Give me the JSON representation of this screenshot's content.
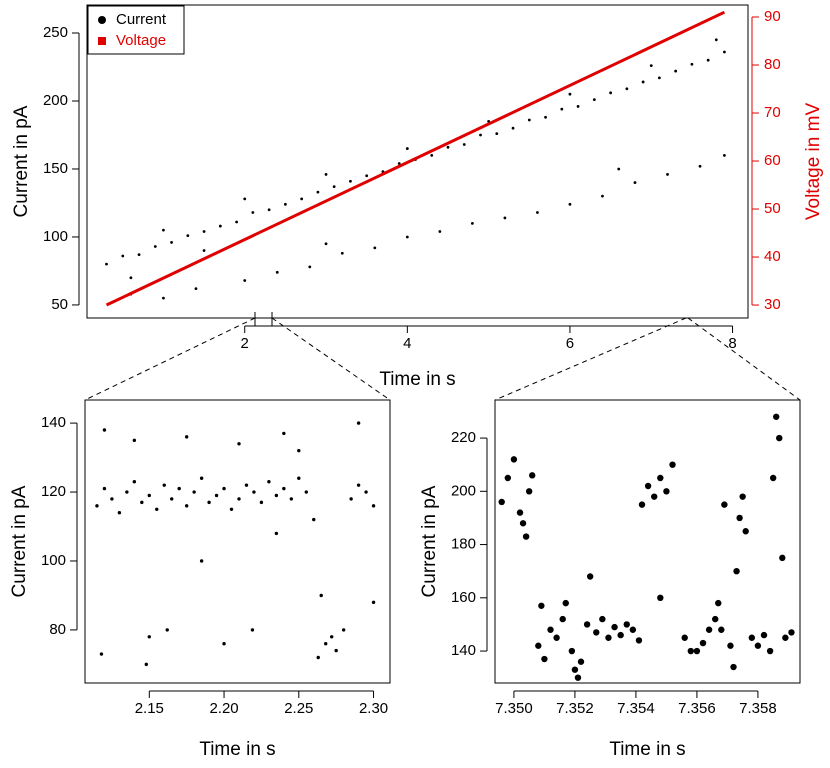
{
  "chart_data": [
    {
      "type": "scatter",
      "xlabel": "Time in s",
      "ylabel": "Current in pA",
      "y2label": "Voltage in mV",
      "xlim": [
        0.06,
        8.19
      ],
      "ylim": [
        40.4,
        270.6
      ],
      "y2lim": [
        27.3,
        92.5
      ],
      "xticks": [
        2,
        4,
        6,
        8
      ],
      "yticks": [
        50,
        100,
        150,
        200,
        250
      ],
      "y2ticks": [
        30,
        40,
        50,
        60,
        70,
        80,
        90
      ],
      "legend": "topleft",
      "y2color": "#e00000",
      "series": [
        {
          "name": "Current",
          "color": "#000000",
          "type": "scatter",
          "x": [
            0.3,
            0.5,
            0.7,
            0.9,
            1.1,
            1.3,
            1.5,
            1.7,
            1.9,
            2.1,
            2.3,
            2.5,
            2.7,
            2.9,
            3.1,
            3.3,
            3.5,
            3.7,
            3.9,
            4.1,
            4.3,
            4.5,
            4.7,
            4.9,
            5.1,
            5.3,
            5.5,
            5.7,
            5.9,
            6.1,
            6.3,
            6.5,
            6.7,
            6.9,
            7.1,
            7.3,
            7.5,
            7.7,
            7.9,
            1.0,
            2.0,
            3.0,
            4.0,
            5.0,
            6.0,
            7.0,
            7.8,
            0.6,
            1.5,
            0.6,
            1.0,
            1.4,
            2.0,
            2.4,
            2.8,
            3.2,
            3.6,
            4.0,
            4.4,
            4.8,
            5.2,
            5.6,
            6.0,
            6.4,
            6.8,
            7.2,
            7.6,
            7.9,
            6.6,
            3.0
          ],
          "values": [
            80,
            86,
            87,
            93,
            96,
            101,
            104,
            108,
            111,
            118,
            120,
            124,
            128,
            133,
            137,
            141,
            145,
            148,
            154,
            157,
            160,
            166,
            168,
            175,
            176,
            180,
            186,
            188,
            194,
            196,
            201,
            206,
            209,
            214,
            217,
            222,
            227,
            230,
            236,
            105,
            128,
            146,
            165,
            185,
            205,
            226,
            245,
            70,
            90,
            58,
            55,
            62,
            68,
            74,
            78,
            88,
            92,
            100,
            104,
            110,
            114,
            118,
            124,
            130,
            140,
            146,
            152,
            160,
            150,
            95
          ]
        },
        {
          "name": "Voltage",
          "color": "#e00000",
          "type": "line",
          "axis": "y2",
          "x": [
            0.3,
            7.9
          ],
          "values": [
            30,
            91
          ]
        }
      ]
    },
    {
      "type": "scatter",
      "xlabel": "Time in s",
      "ylabel": "Current in pA",
      "xlim": [
        2.107,
        2.311
      ],
      "ylim": [
        64.6,
        146.7
      ],
      "xticks": [
        2.15,
        {
          "value": 2.2,
          "label": "2.20"
        },
        2.25,
        {
          "value": 2.3,
          "label": "2.30"
        }
      ],
      "yticks": [
        80,
        100,
        120,
        140
      ],
      "series": [
        {
          "color": "#000000",
          "type": "scatter",
          "x": [
            2.115,
            2.12,
            2.125,
            2.13,
            2.135,
            2.14,
            2.145,
            2.15,
            2.155,
            2.16,
            2.165,
            2.17,
            2.175,
            2.18,
            2.185,
            2.19,
            2.195,
            2.2,
            2.205,
            2.21,
            2.215,
            2.22,
            2.225,
            2.23,
            2.235,
            2.24,
            2.245,
            2.25,
            2.255,
            2.26,
            2.285,
            2.29,
            2.295,
            2.3,
            2.118,
            2.148,
            2.15,
            2.162,
            2.2,
            2.219,
            2.263,
            2.268,
            2.272,
            2.275,
            2.28,
            2.3,
            2.12,
            2.14,
            2.175,
            2.21,
            2.24,
            2.25,
            2.29,
            2.265,
            2.185,
            2.235
          ],
          "values": [
            116,
            121,
            118,
            114,
            120,
            123,
            117,
            119,
            115,
            122,
            118,
            121,
            116,
            120,
            124,
            117,
            119,
            121,
            115,
            118,
            122,
            120,
            117,
            123,
            119,
            121,
            118,
            124,
            120,
            112,
            118,
            122,
            120,
            116,
            73,
            70,
            78,
            80,
            76,
            80,
            72,
            76,
            78,
            74,
            80,
            88,
            138,
            135,
            136,
            134,
            137,
            132,
            140,
            90,
            100,
            108
          ]
        }
      ]
    },
    {
      "type": "scatter",
      "xlabel": "Time in s",
      "ylabel": "Current in pA",
      "xlim": [
        7.34938,
        7.35938
      ],
      "ylim": [
        128,
        234.3
      ],
      "xticks": [
        {
          "value": 7.35,
          "label": "7.350"
        },
        7.352,
        7.354,
        7.356,
        7.358
      ],
      "yticks": [
        140,
        160,
        180,
        200,
        220
      ],
      "series": [
        {
          "color": "#000000",
          "type": "scatter",
          "x": [
            7.3496,
            7.3498,
            7.35,
            7.3502,
            7.3503,
            7.3505,
            7.3506,
            7.3504,
            7.3508,
            7.351,
            7.3512,
            7.3514,
            7.3516,
            7.3517,
            7.3519,
            7.352,
            7.3522,
            7.3524,
            7.3525,
            7.3527,
            7.3529,
            7.3531,
            7.3533,
            7.3535,
            7.3537,
            7.3539,
            7.3541,
            7.3542,
            7.3544,
            7.3546,
            7.3548,
            7.355,
            7.3552,
            7.3548,
            7.3556,
            7.3558,
            7.356,
            7.3562,
            7.3564,
            7.3566,
            7.3567,
            7.3568,
            7.3569,
            7.3571,
            7.3572,
            7.3574,
            7.3575,
            7.3576,
            7.3578,
            7.358,
            7.3582,
            7.3584,
            7.3585,
            7.3586,
            7.3587,
            7.3589,
            7.3591,
            7.3521,
            7.3509,
            7.3573,
            7.3588
          ],
          "values": [
            196,
            205,
            212,
            192,
            188,
            200,
            206,
            183,
            142,
            137,
            148,
            145,
            152,
            158,
            140,
            133,
            136,
            150,
            168,
            147,
            152,
            145,
            149,
            146,
            150,
            148,
            144,
            195,
            202,
            198,
            205,
            200,
            210,
            160,
            145,
            140,
            140,
            143,
            148,
            152,
            158,
            148,
            195,
            142,
            134,
            190,
            198,
            185,
            145,
            142,
            146,
            140,
            205,
            228,
            220,
            145,
            147,
            130,
            157,
            170,
            175
          ]
        }
      ]
    }
  ]
}
